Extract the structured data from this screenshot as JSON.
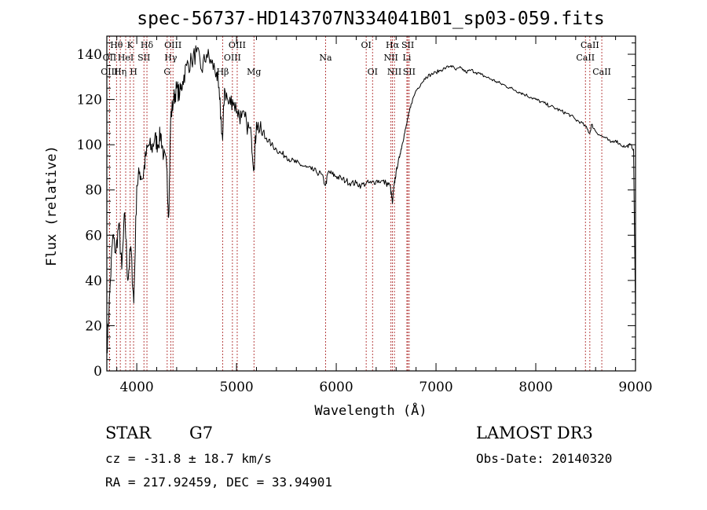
{
  "chart_data": {
    "type": "line",
    "title": "spec-56737-HD143707N334041B01_sp03-059.fits",
    "xlabel": "Wavelength (Å)",
    "ylabel": "Flux (relative)",
    "xlim": [
      3700,
      9000
    ],
    "ylim": [
      0,
      148
    ],
    "xticks": [
      4000,
      5000,
      6000,
      7000,
      8000,
      9000
    ],
    "yticks": [
      0,
      20,
      40,
      60,
      80,
      100,
      120,
      140
    ],
    "xtick_labels": [
      "4000",
      "5000",
      "6000",
      "7000",
      "8000",
      "9000"
    ],
    "ytick_labels": [
      "0",
      "20",
      "40",
      "60",
      "80",
      "100",
      "120",
      "140"
    ],
    "series": [
      {
        "name": "flux",
        "x": [
          3700,
          3730,
          3760,
          3790,
          3820,
          3850,
          3880,
          3910,
          3940,
          3970,
          4000,
          4030,
          4060,
          4090,
          4120,
          4150,
          4180,
          4210,
          4240,
          4270,
          4300,
          4320,
          4340,
          4370,
          4400,
          4430,
          4460,
          4500,
          4550,
          4600,
          4650,
          4700,
          4750,
          4800,
          4830,
          4861,
          4880,
          4920,
          4960,
          5007,
          5050,
          5100,
          5150,
          5175,
          5200,
          5250,
          5300,
          5350,
          5400,
          5450,
          5500,
          5550,
          5600,
          5650,
          5700,
          5750,
          5800,
          5850,
          5893,
          5920,
          5960,
          6000,
          6050,
          6100,
          6150,
          6200,
          6250,
          6300,
          6350,
          6400,
          6450,
          6500,
          6540,
          6563,
          6580,
          6600,
          6620,
          6640,
          6660,
          6680,
          6700,
          6720,
          6750,
          6800,
          6850,
          6900,
          6950,
          7000,
          7050,
          7100,
          7150,
          7200,
          7250,
          7300,
          7350,
          7400,
          7450,
          7500,
          7550,
          7600,
          7650,
          7700,
          7750,
          7800,
          7850,
          7900,
          7950,
          8000,
          8050,
          8100,
          8150,
          8200,
          8250,
          8300,
          8350,
          8400,
          8450,
          8500,
          8542,
          8560,
          8600,
          8650,
          8700,
          8750,
          8800,
          8850,
          8900,
          8950,
          8980,
          9000
        ],
        "values": [
          8,
          35,
          60,
          52,
          65,
          45,
          70,
          40,
          55,
          30,
          82,
          88,
          85,
          95,
          100,
          98,
          103,
          100,
          105,
          95,
          90,
          68,
          112,
          120,
          125,
          122,
          128,
          135,
          137,
          141,
          133,
          140,
          136,
          132,
          120,
          102,
          125,
          118,
          120,
          115,
          112,
          110,
          103,
          90,
          110,
          105,
          103,
          100,
          98,
          96,
          95,
          93,
          92,
          91,
          90,
          89,
          88,
          87,
          82,
          88,
          87,
          86,
          85,
          84,
          83,
          83,
          82,
          83,
          83,
          84,
          84,
          83,
          82,
          74,
          82,
          88,
          92,
          96,
          100,
          104,
          108,
          112,
          118,
          124,
          127,
          130,
          131,
          132,
          133,
          134,
          135,
          133,
          134,
          132,
          133,
          132,
          131,
          130,
          129,
          128,
          127,
          126,
          125,
          124,
          123,
          122,
          121,
          120,
          119,
          118,
          117,
          116,
          115,
          114,
          113,
          111,
          110,
          108,
          105,
          109,
          106,
          104,
          103,
          101,
          102,
          100,
          99,
          100,
          98,
          25
        ]
      }
    ],
    "spectral_lines": [
      {
        "label": "Hθ",
        "x": 3797,
        "row": 1
      },
      {
        "label": "OII",
        "x": 3727,
        "row": 2
      },
      {
        "label": "OIII",
        "x": 3726,
        "row": 3
      },
      {
        "label": "Hη",
        "x": 3835,
        "row": 3
      },
      {
        "label": "HeI",
        "x": 3889,
        "row": 2
      },
      {
        "label": "K",
        "x": 3934,
        "row": 1
      },
      {
        "label": "H",
        "x": 3968,
        "row": 3
      },
      {
        "label": "Hδ",
        "x": 4102,
        "row": 1
      },
      {
        "label": "SII",
        "x": 4072,
        "row": 2
      },
      {
        "label": "OIII",
        "x": 4363,
        "row": 1
      },
      {
        "label": "Hγ",
        "x": 4341,
        "row": 2
      },
      {
        "label": "G",
        "x": 4305,
        "row": 3
      },
      {
        "label": "OIII",
        "x": 5007,
        "row": 1
      },
      {
        "label": "OIII",
        "x": 4959,
        "row": 2
      },
      {
        "label": "Hβ",
        "x": 4861,
        "row": 3
      },
      {
        "label": "Mg",
        "x": 5175,
        "row": 3
      },
      {
        "label": "Na",
        "x": 5893,
        "row": 2
      },
      {
        "label": "OI",
        "x": 6300,
        "row": 1
      },
      {
        "label": "OI",
        "x": 6364,
        "row": 3
      },
      {
        "label": "Hα",
        "x": 6563,
        "row": 1
      },
      {
        "label": "NII",
        "x": 6548,
        "row": 2
      },
      {
        "label": "NII",
        "x": 6583,
        "row": 3
      },
      {
        "label": "SII",
        "x": 6717,
        "row": 1
      },
      {
        "label": "Li",
        "x": 6708,
        "row": 2
      },
      {
        "label": "SII",
        "x": 6731,
        "row": 3
      },
      {
        "label": "CaII",
        "x": 8542,
        "row": 1
      },
      {
        "label": "CaII",
        "x": 8498,
        "row": 2
      },
      {
        "label": "CaII",
        "x": 8662,
        "row": 3
      }
    ]
  },
  "info": {
    "object_class": "STAR",
    "subclass": "G7",
    "survey": "LAMOST DR3",
    "redshift": "cz = -31.8 ± 18.7 km/s",
    "obs_date": "Obs-Date: 20140320",
    "coords": "RA = 217.92459, DEC =  33.94901"
  }
}
